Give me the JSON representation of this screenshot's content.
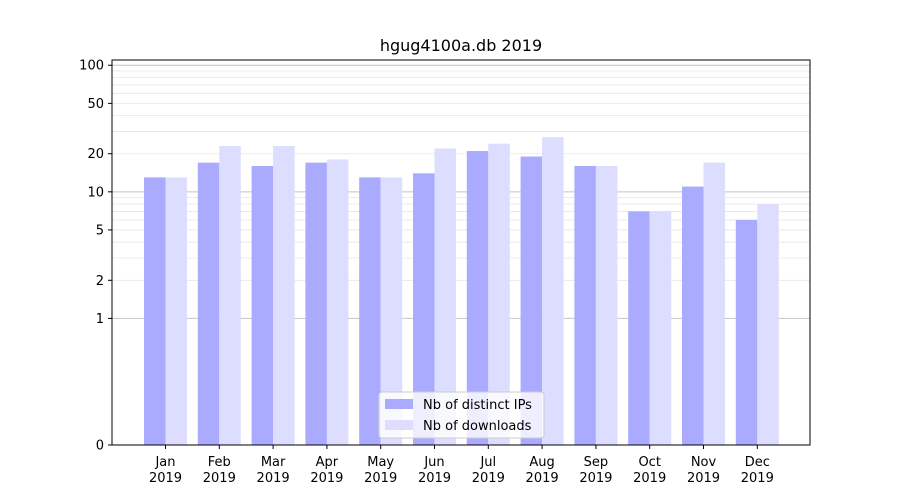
{
  "chart_data": {
    "type": "bar",
    "title": "hgug4100a.db 2019",
    "xlabel": "",
    "ylabel": "",
    "yscale": "symlog",
    "ylim": [
      0,
      110
    ],
    "yticks": [
      0,
      1,
      2,
      5,
      10,
      20,
      50,
      100
    ],
    "ytick_labels": [
      "0",
      "1",
      "2",
      "5",
      "10",
      "20",
      "50",
      "100"
    ],
    "grid": "horizontal",
    "legend_position": "bottom-center",
    "categories": [
      [
        "Jan",
        "2019"
      ],
      [
        "Feb",
        "2019"
      ],
      [
        "Mar",
        "2019"
      ],
      [
        "Apr",
        "2019"
      ],
      [
        "May",
        "2019"
      ],
      [
        "Jun",
        "2019"
      ],
      [
        "Jul",
        "2019"
      ],
      [
        "Aug",
        "2019"
      ],
      [
        "Sep",
        "2019"
      ],
      [
        "Oct",
        "2019"
      ],
      [
        "Nov",
        "2019"
      ],
      [
        "Dec",
        "2019"
      ]
    ],
    "series": [
      {
        "name": "Nb of distinct IPs",
        "color": "#aaaaff",
        "values": [
          13,
          17,
          16,
          17,
          13,
          14,
          21,
          19,
          16,
          7,
          11,
          6
        ]
      },
      {
        "name": "Nb of downloads",
        "color": "#ddddff",
        "values": [
          13,
          23,
          23,
          18,
          13,
          22,
          24,
          27,
          16,
          7,
          17,
          8
        ]
      }
    ]
  }
}
